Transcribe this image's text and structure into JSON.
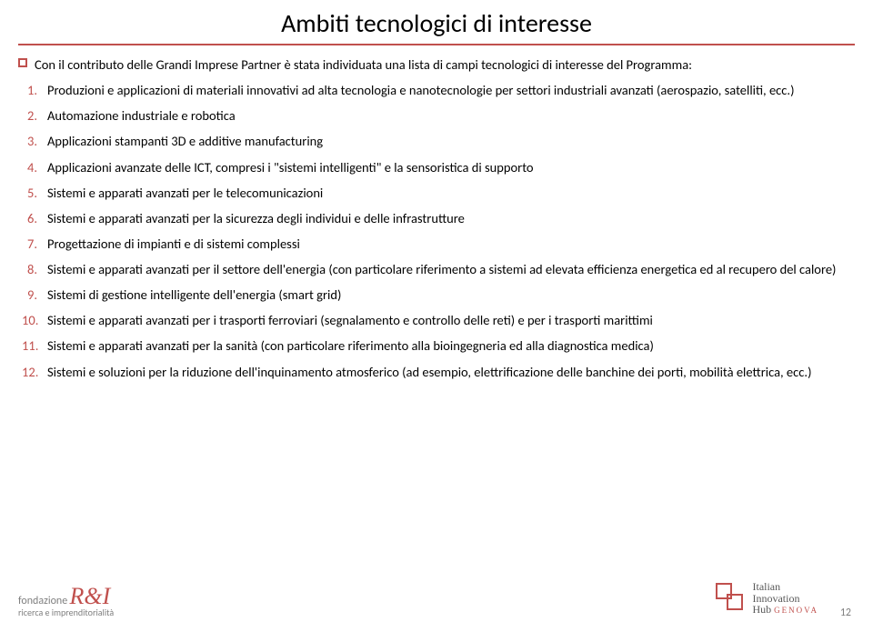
{
  "colors": {
    "accent": "#c0504d",
    "text": "#000000",
    "muted": "#7f7f7f",
    "background": "#ffffff"
  },
  "typography": {
    "title_fontsize": 28,
    "body_fontsize": 14.5,
    "font_family": "Calibri"
  },
  "title": "Ambiti tecnologici di interesse",
  "lead": "Con il contributo delle Grandi Imprese Partner è stata individuata una lista di campi tecnologici di interesse del Programma:",
  "items": [
    "Produzioni e applicazioni di materiali innovativi ad alta tecnologia e nanotecnologie per settori industriali avanzati (aerospazio, satelliti, ecc.)",
    "Automazione industriale e robotica",
    "Applicazioni stampanti 3D e additive manufacturing",
    "Applicazioni avanzate delle ICT, compresi i \"sistemi intelligenti\" e la sensoristica di supporto",
    "Sistemi e apparati avanzati per  le telecomunicazioni",
    "Sistemi e apparati avanzati per la sicurezza degli individui e delle infrastrutture",
    "Progettazione di impianti e di sistemi complessi",
    "Sistemi e apparati avanzati per il settore dell'energia (con particolare riferimento a sistemi ad elevata efficienza energetica ed al recupero del calore)",
    "Sistemi di gestione intelligente dell'energia (smart grid)",
    "Sistemi e apparati avanzati per i trasporti ferroviari (segnalamento e controllo delle reti) e per i trasporti marittimi",
    "Sistemi e apparati avanzati per la sanità (con particolare riferimento alla bioingegneria ed alla diagnostica medica)",
    "Sistemi e soluzioni per la riduzione dell'inquinamento atmosferico (ad esempio, elettrificazione delle banchine dei porti, mobilità elettrica, ecc.)"
  ],
  "footer": {
    "logo_left_line1": "fondazione",
    "logo_left_mark": "R&I",
    "logo_left_sub": "ricerca e imprenditorialità",
    "logo_right_line1": "Italian",
    "logo_right_line2": "Innovation",
    "logo_right_line3": "Hub",
    "logo_right_city": "GENOVA",
    "page_number": "12"
  }
}
